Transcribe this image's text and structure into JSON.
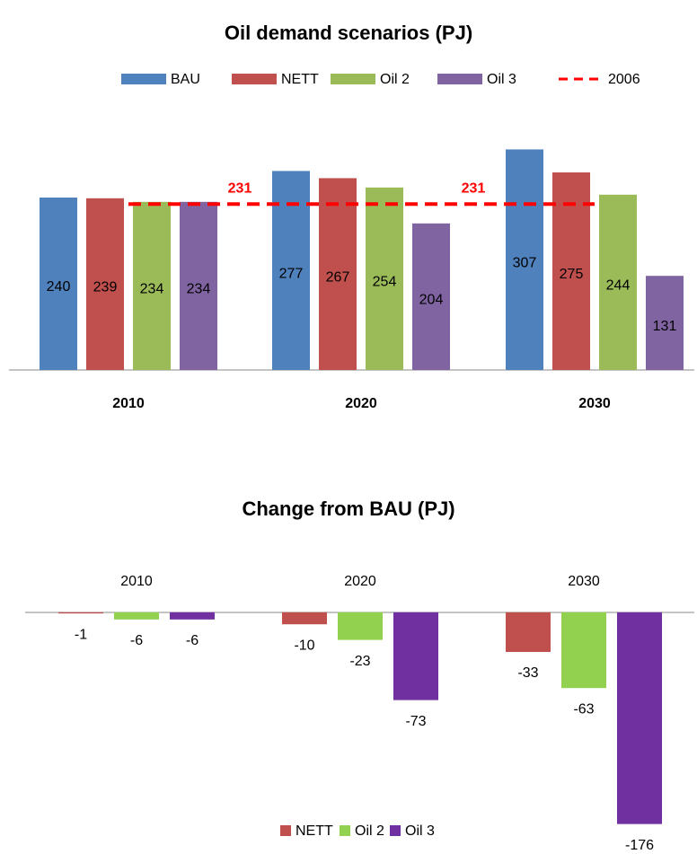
{
  "chart_data": [
    {
      "type": "bar",
      "title": "Oil demand scenarios (PJ)",
      "categories": [
        "2010",
        "2020",
        "2030"
      ],
      "series": [
        {
          "name": "BAU",
          "color": "#4f81bd",
          "values": [
            240,
            277,
            307
          ]
        },
        {
          "name": "NETT",
          "color": "#c0504d",
          "values": [
            239,
            267,
            275
          ]
        },
        {
          "name": "Oil 2",
          "color": "#9bbb59",
          "values": [
            234,
            254,
            244
          ]
        },
        {
          "name": "Oil 3",
          "color": "#8064a2",
          "values": [
            234,
            204,
            131
          ]
        },
        {
          "name": "2006",
          "color": "#ff0000",
          "kind": "dashed-line",
          "values": [
            231,
            231,
            231
          ]
        }
      ],
      "ylim": [
        0,
        390
      ],
      "legend": "top"
    },
    {
      "type": "bar",
      "title": "Change from BAU  (PJ)",
      "categories": [
        "2010",
        "2020",
        "2030"
      ],
      "series": [
        {
          "name": "NETT",
          "color": "#c0504d",
          "values": [
            -1,
            -10,
            -33
          ]
        },
        {
          "name": "Oil 2",
          "color": "#92d050",
          "values": [
            -6,
            -23,
            -63
          ]
        },
        {
          "name": "Oil 3",
          "color": "#7030a0",
          "values": [
            -6,
            -73,
            -176
          ]
        }
      ],
      "ylim": [
        -180,
        20
      ],
      "legend": "bottom"
    }
  ]
}
